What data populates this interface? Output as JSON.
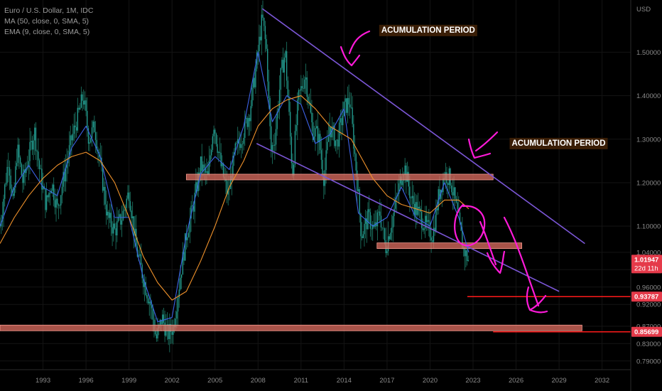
{
  "legend": {
    "symbol": "Euro / U.S. Dollar, 1M, IDC",
    "ma": "MA (50, close, 0, SMA, 5)",
    "ema": "EMA (9, close, 0, SMA, 5)"
  },
  "colors": {
    "background": "#000000",
    "ma_line": "#f0922b",
    "ema_line": "#3d62e6",
    "channel": "#7b56d6",
    "annotation": "#ff1ad9",
    "zone": "#e06f62",
    "price_badge_bg": "#e53a4a",
    "target_line": "#ff1a1a",
    "candle": "#1e7d6a"
  },
  "chart_data": {
    "type": "candlestick",
    "currency": "USD",
    "y_axis": {
      "range": [
        0.77,
        1.62
      ],
      "ticks": [
        "0.79000",
        "0.83000",
        "0.87000",
        "0.92000",
        "0.96000",
        "1.00000",
        "1.04000",
        "1.10000",
        "1.20000",
        "1.30000",
        "1.40000",
        "1.50000"
      ]
    },
    "x_axis": {
      "range": [
        1990.0,
        2034.0
      ],
      "ticks": [
        "1993",
        "1996",
        "1999",
        "2002",
        "2005",
        "2008",
        "2011",
        "2014",
        "2017",
        "2020",
        "2023",
        "2026",
        "2029",
        "2032"
      ]
    },
    "price_path": [
      [
        1990.0,
        1.1
      ],
      [
        1990.3,
        1.18
      ],
      [
        1990.6,
        1.26
      ],
      [
        1990.9,
        1.14
      ],
      [
        1991.2,
        1.28
      ],
      [
        1991.6,
        1.2
      ],
      [
        1992.0,
        1.26
      ],
      [
        1992.4,
        1.32
      ],
      [
        1992.8,
        1.22
      ],
      [
        1993.2,
        1.15
      ],
      [
        1993.6,
        1.2
      ],
      [
        1994.0,
        1.14
      ],
      [
        1994.5,
        1.22
      ],
      [
        1995.0,
        1.3
      ],
      [
        1995.5,
        1.36
      ],
      [
        1995.8,
        1.4
      ],
      [
        1996.2,
        1.3
      ],
      [
        1996.6,
        1.33
      ],
      [
        1997.0,
        1.24
      ],
      [
        1997.5,
        1.12
      ],
      [
        1998.0,
        1.09
      ],
      [
        1998.5,
        1.12
      ],
      [
        1999.0,
        1.18
      ],
      [
        1999.5,
        1.05
      ],
      [
        2000.0,
        0.98
      ],
      [
        2000.5,
        0.92
      ],
      [
        2000.9,
        0.84
      ],
      [
        2001.3,
        0.89
      ],
      [
        2001.7,
        0.85
      ],
      [
        2002.1,
        0.87
      ],
      [
        2002.6,
        0.99
      ],
      [
        2003.0,
        1.08
      ],
      [
        2003.5,
        1.15
      ],
      [
        2004.0,
        1.24
      ],
      [
        2004.5,
        1.21
      ],
      [
        2004.9,
        1.34
      ],
      [
        2005.4,
        1.24
      ],
      [
        2005.9,
        1.17
      ],
      [
        2006.4,
        1.27
      ],
      [
        2006.9,
        1.31
      ],
      [
        2007.4,
        1.36
      ],
      [
        2007.8,
        1.45
      ],
      [
        2008.3,
        1.58
      ],
      [
        2008.6,
        1.5
      ],
      [
        2008.9,
        1.27
      ],
      [
        2009.2,
        1.31
      ],
      [
        2009.6,
        1.45
      ],
      [
        2009.9,
        1.5
      ],
      [
        2010.4,
        1.22
      ],
      [
        2010.8,
        1.39
      ],
      [
        2011.3,
        1.45
      ],
      [
        2011.8,
        1.32
      ],
      [
        2012.2,
        1.31
      ],
      [
        2012.6,
        1.21
      ],
      [
        2013.0,
        1.33
      ],
      [
        2013.5,
        1.29
      ],
      [
        2014.0,
        1.37
      ],
      [
        2014.4,
        1.39
      ],
      [
        2014.9,
        1.21
      ],
      [
        2015.2,
        1.08
      ],
      [
        2015.7,
        1.12
      ],
      [
        2016.1,
        1.09
      ],
      [
        2016.5,
        1.13
      ],
      [
        2016.9,
        1.05
      ],
      [
        2017.4,
        1.12
      ],
      [
        2017.9,
        1.2
      ],
      [
        2018.2,
        1.24
      ],
      [
        2018.7,
        1.16
      ],
      [
        2019.2,
        1.13
      ],
      [
        2019.7,
        1.1
      ],
      [
        2020.2,
        1.08
      ],
      [
        2020.6,
        1.17
      ],
      [
        2021.0,
        1.22
      ],
      [
        2021.4,
        1.21
      ],
      [
        2021.9,
        1.13
      ],
      [
        2022.3,
        1.05
      ],
      [
        2022.7,
        1.02
      ]
    ],
    "ma50_path": [
      [
        1990.0,
        1.06
      ],
      [
        1991.0,
        1.12
      ],
      [
        1992.0,
        1.17
      ],
      [
        1993.0,
        1.21
      ],
      [
        1994.0,
        1.24
      ],
      [
        1995.0,
        1.26
      ],
      [
        1996.0,
        1.27
      ],
      [
        1997.0,
        1.25
      ],
      [
        1998.0,
        1.2
      ],
      [
        1999.0,
        1.12
      ],
      [
        2000.0,
        1.03
      ],
      [
        2001.0,
        0.97
      ],
      [
        2002.0,
        0.93
      ],
      [
        2003.0,
        0.95
      ],
      [
        2004.0,
        1.02
      ],
      [
        2005.0,
        1.1
      ],
      [
        2006.0,
        1.19
      ],
      [
        2007.0,
        1.25
      ],
      [
        2008.0,
        1.33
      ],
      [
        2009.0,
        1.37
      ],
      [
        2010.0,
        1.39
      ],
      [
        2011.0,
        1.4
      ],
      [
        2012.0,
        1.37
      ],
      [
        2013.0,
        1.33
      ],
      [
        2014.0,
        1.31
      ],
      [
        2014.5,
        1.3
      ],
      [
        2015.0,
        1.27
      ],
      [
        2016.0,
        1.21
      ],
      [
        2017.0,
        1.17
      ],
      [
        2018.0,
        1.15
      ],
      [
        2019.0,
        1.14
      ],
      [
        2020.0,
        1.13
      ],
      [
        2021.0,
        1.16
      ],
      [
        2022.0,
        1.16
      ],
      [
        2022.7,
        1.14
      ]
    ],
    "ema9_path": [
      [
        1990.0,
        1.1
      ],
      [
        1991.0,
        1.19
      ],
      [
        1992.0,
        1.24
      ],
      [
        1993.0,
        1.19
      ],
      [
        1994.0,
        1.17
      ],
      [
        1995.0,
        1.28
      ],
      [
        1996.0,
        1.33
      ],
      [
        1997.0,
        1.26
      ],
      [
        1998.0,
        1.12
      ],
      [
        1999.0,
        1.12
      ],
      [
        2000.0,
        0.98
      ],
      [
        2001.0,
        0.88
      ],
      [
        2002.0,
        0.89
      ],
      [
        2003.0,
        1.08
      ],
      [
        2004.0,
        1.22
      ],
      [
        2005.0,
        1.26
      ],
      [
        2006.0,
        1.23
      ],
      [
        2007.0,
        1.33
      ],
      [
        2008.0,
        1.5
      ],
      [
        2009.0,
        1.34
      ],
      [
        2010.0,
        1.4
      ],
      [
        2011.0,
        1.38
      ],
      [
        2012.0,
        1.29
      ],
      [
        2013.0,
        1.31
      ],
      [
        2014.0,
        1.37
      ],
      [
        2015.0,
        1.13
      ],
      [
        2016.0,
        1.1
      ],
      [
        2017.0,
        1.12
      ],
      [
        2018.0,
        1.19
      ],
      [
        2019.0,
        1.12
      ],
      [
        2020.0,
        1.1
      ],
      [
        2021.0,
        1.2
      ],
      [
        2022.0,
        1.12
      ],
      [
        2022.7,
        1.04
      ]
    ],
    "channel_upper": [
      [
        2008.3,
        1.6
      ],
      [
        2030.8,
        1.06
      ]
    ],
    "channel_lower": [
      [
        2007.9,
        1.29
      ],
      [
        2029.0,
        0.95
      ]
    ],
    "zones": [
      {
        "x": [
          2003.0,
          2024.4
        ],
        "y": 1.213
      },
      {
        "x": [
          2016.3,
          2026.4
        ],
        "y": 1.055
      },
      {
        "x": [
          1990.0,
          2030.6
        ],
        "y": 0.866
      }
    ],
    "target_lines": [
      {
        "x_start": 2022.6,
        "y": 0.9379
      },
      {
        "x_start": 2024.4,
        "y": 0.857
      }
    ],
    "annotations": [
      {
        "text": "ACUMULATION PERIOD",
        "x": 2016.6,
        "y": 1.545
      },
      {
        "text": "ACUMULATION PERIOD",
        "x": 2025.7,
        "y": 1.285
      }
    ],
    "price_badges": [
      {
        "value": "1.01947",
        "sub": "22d 11h",
        "y": 1.0195
      },
      {
        "value": "0.93787",
        "y": 0.9379
      },
      {
        "value": "0.85699",
        "y": 0.857
      }
    ]
  }
}
